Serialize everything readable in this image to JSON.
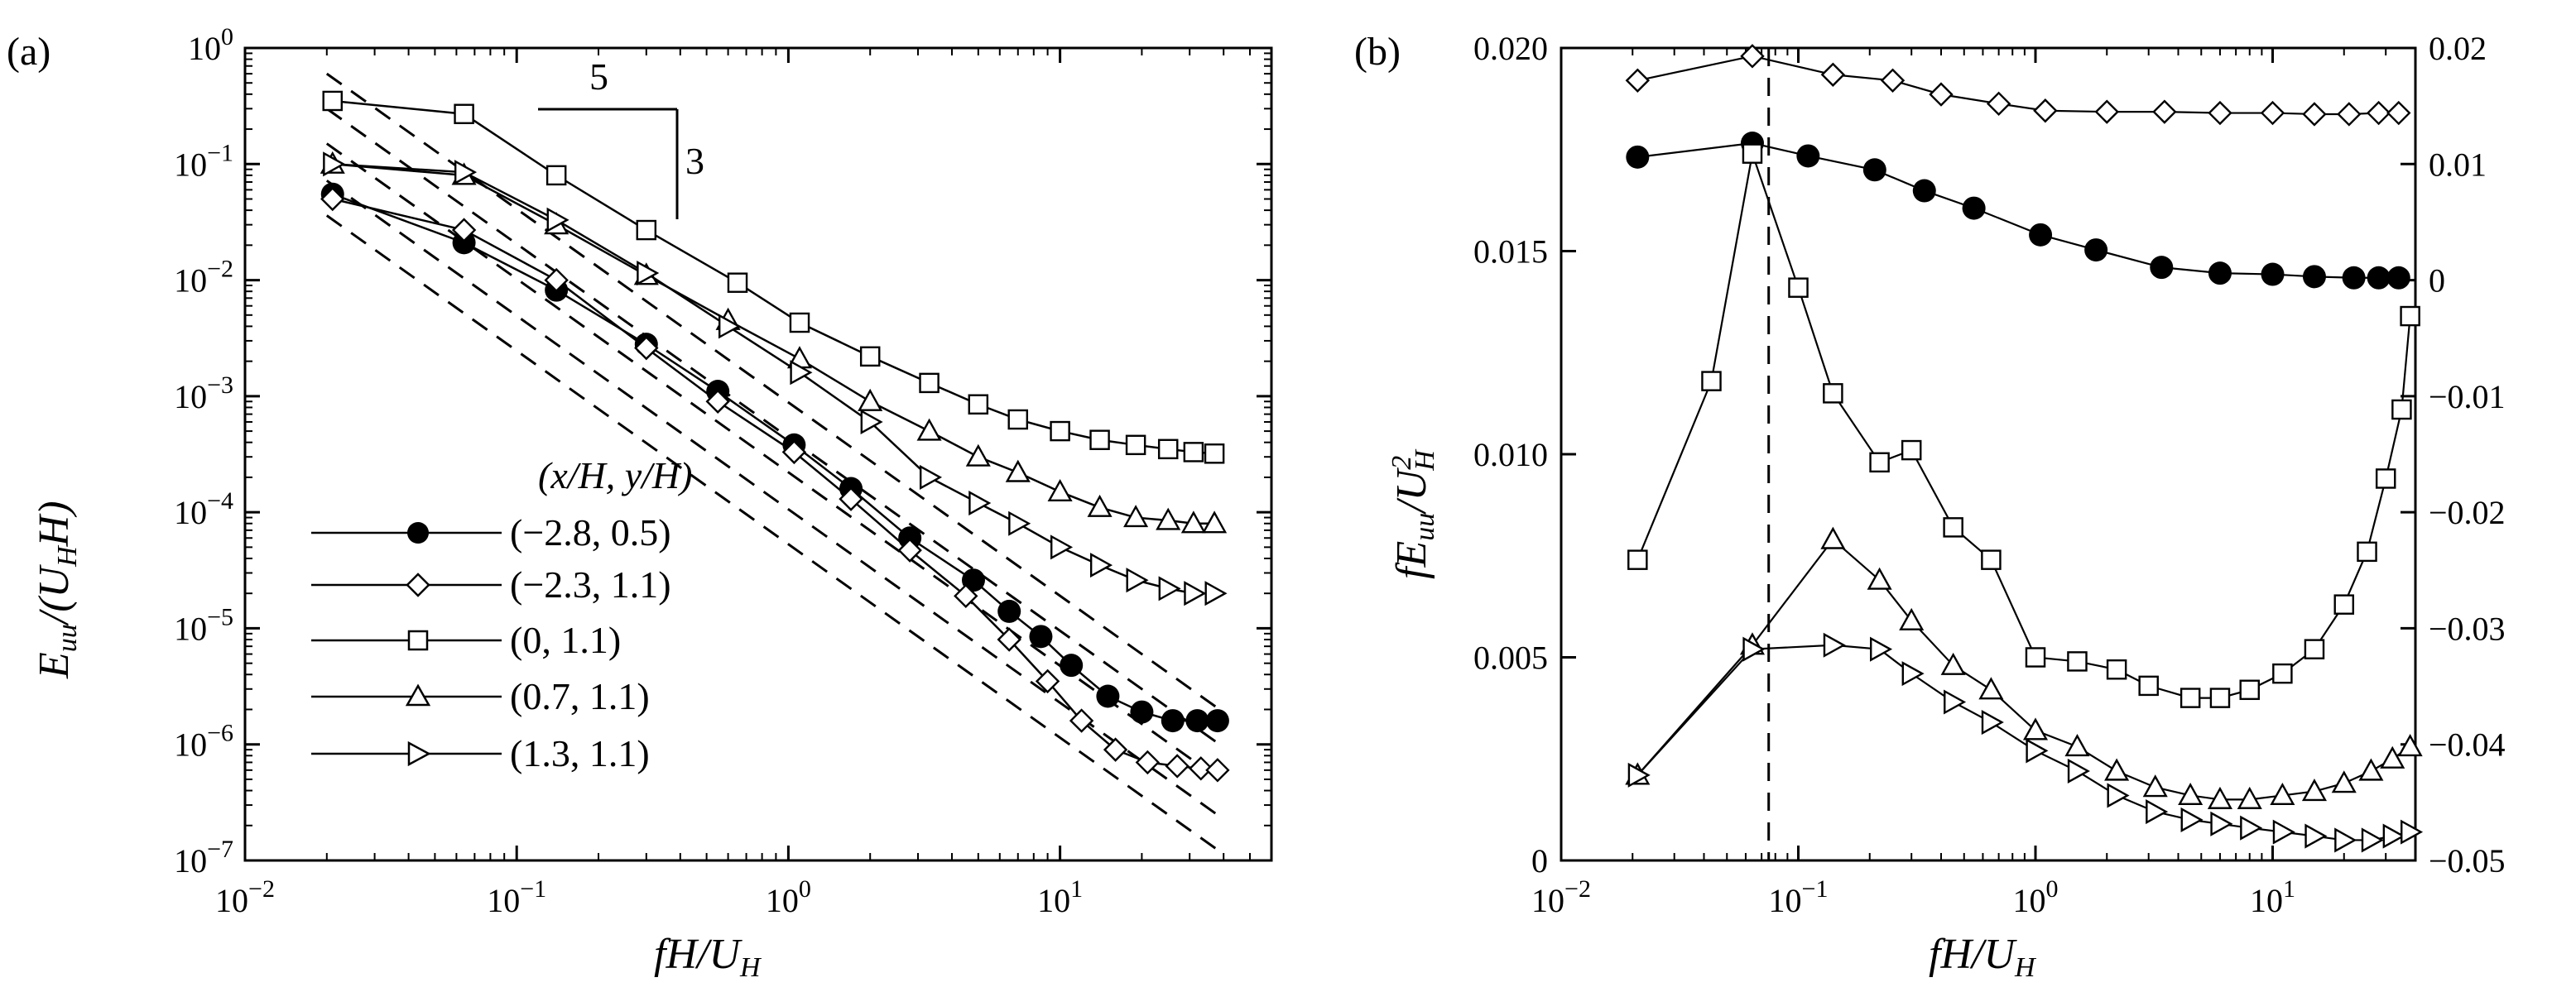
{
  "chart_data": [
    {
      "panel": "(a)",
      "type": "line",
      "xscale": "log",
      "yscale": "log",
      "xlabel": "fH/U_H",
      "ylabel": "E_uu/(U_H H)",
      "xlim": [
        0.01,
        60
      ],
      "ylim": [
        1e-07,
        1
      ],
      "xticks": [
        {
          "v": 0.01,
          "label": "10^-2"
        },
        {
          "v": 0.1,
          "label": "10^-1"
        },
        {
          "v": 1,
          "label": "10^0"
        },
        {
          "v": 10,
          "label": "10^1"
        }
      ],
      "yticks": [
        {
          "v": 1,
          "label": "10^0"
        },
        {
          "v": 0.1,
          "label": "10^-1"
        },
        {
          "v": 0.01,
          "label": "10^-2"
        },
        {
          "v": 0.001,
          "label": "10^-3"
        },
        {
          "v": 0.0001,
          "label": "10^-4"
        },
        {
          "v": 1e-05,
          "label": "10^-5"
        },
        {
          "v": 1e-06,
          "label": "10^-6"
        },
        {
          "v": 1e-07,
          "label": "10^-7"
        }
      ],
      "legend_title": "(x/H, y/H)",
      "legend_position": "lower-left",
      "slope_annotation": {
        "run": "5",
        "rise": "3"
      },
      "series": [
        {
          "name": "(−2.8, 0.5)",
          "marker": "circle-filled",
          "x": [
            0.021,
            0.064,
            0.14,
            0.3,
            0.55,
            1.05,
            1.7,
            2.8,
            4.8,
            6.5,
            8.5,
            11,
            15,
            20,
            26,
            32,
            38
          ],
          "y": [
            0.055,
            0.021,
            0.0082,
            0.0028,
            0.0011,
            0.00038,
            0.00016,
            6e-05,
            2.6e-05,
            1.4e-05,
            8.5e-06,
            4.8e-06,
            2.6e-06,
            1.9e-06,
            1.6e-06,
            1.6e-06,
            1.6e-06
          ]
        },
        {
          "name": "(−2.3, 1.1)",
          "marker": "diamond",
          "x": [
            0.021,
            0.064,
            0.14,
            0.3,
            0.55,
            1.05,
            1.7,
            2.8,
            4.5,
            6.5,
            9,
            12,
            16,
            21,
            27,
            33,
            38
          ],
          "y": [
            0.05,
            0.027,
            0.01,
            0.0026,
            0.0009,
            0.00033,
            0.00013,
            4.7e-05,
            1.9e-05,
            8e-06,
            3.5e-06,
            1.6e-06,
            9e-07,
            7e-07,
            6.5e-07,
            6.2e-07,
            6e-07
          ]
        },
        {
          "name": "(0, 1.1)",
          "marker": "square",
          "x": [
            0.021,
            0.064,
            0.14,
            0.3,
            0.65,
            1.1,
            2,
            3.3,
            5,
            7,
            10,
            14,
            19,
            25,
            31,
            37
          ],
          "y": [
            0.35,
            0.27,
            0.08,
            0.027,
            0.0095,
            0.0043,
            0.0022,
            0.0013,
            0.00085,
            0.00063,
            0.0005,
            0.00042,
            0.00038,
            0.00035,
            0.00033,
            0.00032
          ]
        },
        {
          "name": "(0.7, 1.1)",
          "marker": "triangle-up",
          "x": [
            0.021,
            0.064,
            0.14,
            0.3,
            0.6,
            1.1,
            2,
            3.3,
            5,
            7,
            10,
            14,
            19,
            25,
            31,
            37
          ],
          "y": [
            0.1,
            0.08,
            0.03,
            0.011,
            0.0045,
            0.0021,
            0.0009,
            0.0005,
            0.0003,
            0.00022,
            0.00015,
            0.00011,
            9e-05,
            8.5e-05,
            8e-05,
            8e-05
          ]
        },
        {
          "name": "(1.3, 1.1)",
          "marker": "triangle-right",
          "x": [
            0.021,
            0.064,
            0.14,
            0.3,
            0.6,
            1.1,
            2,
            3.3,
            5,
            7,
            10,
            14,
            19,
            25,
            31,
            37
          ],
          "y": [
            0.1,
            0.085,
            0.033,
            0.0115,
            0.004,
            0.0016,
            0.0006,
            0.0002,
            0.00012,
            8e-05,
            5e-05,
            3.5e-05,
            2.6e-05,
            2.2e-05,
            2e-05,
            2e-05
          ]
        }
      ],
      "reference_lines": [
        {
          "slope": -1.6667,
          "x": [
            0.02,
            38
          ],
          "y0": 0.6
        },
        {
          "slope": -1.6667,
          "x": [
            0.02,
            38
          ],
          "y0": 0.3
        },
        {
          "slope": -1.6667,
          "x": [
            0.02,
            38
          ],
          "y0": 0.15
        },
        {
          "slope": -1.6667,
          "x": [
            0.02,
            38
          ],
          "y0": 0.072
        },
        {
          "slope": -1.6667,
          "x": [
            0.02,
            38
          ],
          "y0": 0.036
        }
      ]
    },
    {
      "panel": "(b)",
      "type": "line",
      "xscale": "log",
      "yscale": "linear",
      "xlabel": "fH/U_H",
      "ylabel": "fE_uu/U_H^2",
      "xlim": [
        0.01,
        40
      ],
      "ylim": [
        0,
        0.02
      ],
      "y2lim": [
        -0.05,
        0.02
      ],
      "xticks": [
        {
          "v": 0.01,
          "label": "10^-2"
        },
        {
          "v": 0.1,
          "label": "10^-1"
        },
        {
          "v": 1,
          "label": "10^0"
        },
        {
          "v": 10,
          "label": "10^1"
        }
      ],
      "yticks": [
        {
          "v": 0,
          "label": "0"
        },
        {
          "v": 0.005,
          "label": "0.005"
        },
        {
          "v": 0.01,
          "label": "0.010"
        },
        {
          "v": 0.015,
          "label": "0.015"
        },
        {
          "v": 0.02,
          "label": "0.020"
        }
      ],
      "y2ticks": [
        {
          "v": 0.02,
          "label": "0.02"
        },
        {
          "v": 0.01,
          "label": "0.01"
        },
        {
          "v": 0,
          "label": "0"
        },
        {
          "v": -0.01,
          "label": "−0.01"
        },
        {
          "v": -0.02,
          "label": "−0.02"
        },
        {
          "v": -0.03,
          "label": "−0.03"
        },
        {
          "v": -0.04,
          "label": "−0.04"
        },
        {
          "v": -0.05,
          "label": "−0.05"
        }
      ],
      "vline_x": 0.075,
      "series": [
        {
          "name": "(−2.8, 0.5)",
          "marker": "circle-filled",
          "axis": "right",
          "x": [
            0.021,
            0.064,
            0.11,
            0.21,
            0.34,
            0.55,
            1.05,
            1.8,
            3.4,
            6,
            10,
            15,
            22,
            28,
            34
          ],
          "y": [
            0.0106,
            0.0118,
            0.0107,
            0.0095,
            0.0077,
            0.0062,
            0.0039,
            0.0026,
            0.0011,
            0.0006,
            0.0005,
            0.0003,
            0.0002,
            0.0002,
            0.0002
          ]
        },
        {
          "name": "(−2.3, 1.1)",
          "marker": "diamond",
          "axis": "right",
          "x": [
            0.021,
            0.064,
            0.14,
            0.25,
            0.4,
            0.7,
            1.1,
            2,
            3.5,
            6,
            10,
            15,
            21,
            28,
            34
          ],
          "y": [
            0.0172,
            0.0193,
            0.0177,
            0.0172,
            0.016,
            0.0152,
            0.0146,
            0.0145,
            0.0145,
            0.0144,
            0.0144,
            0.0143,
            0.0143,
            0.0144,
            0.0144
          ]
        },
        {
          "name": "(0, 1.1)",
          "marker": "square",
          "axis": "left",
          "x": [
            0.021,
            0.043,
            0.064,
            0.1,
            0.14,
            0.22,
            0.3,
            0.45,
            0.65,
            1,
            1.5,
            2.2,
            3,
            4.5,
            6,
            8,
            11,
            15,
            20,
            25,
            30,
            35,
            38
          ],
          "y": [
            0.0074,
            0.0118,
            0.0174,
            0.0141,
            0.0115,
            0.0098,
            0.0101,
            0.0082,
            0.0074,
            0.005,
            0.0049,
            0.0047,
            0.0043,
            0.004,
            0.004,
            0.0042,
            0.0046,
            0.0052,
            0.0063,
            0.0076,
            0.0094,
            0.0111,
            0.0134
          ]
        },
        {
          "name": "(0.7, 1.1)",
          "marker": "triangle-up",
          "axis": "left",
          "x": [
            0.021,
            0.064,
            0.14,
            0.22,
            0.3,
            0.45,
            0.65,
            1,
            1.5,
            2.2,
            3.2,
            4.5,
            6,
            8,
            11,
            15,
            20,
            26,
            32,
            38
          ],
          "y": [
            0.0021,
            0.0053,
            0.0079,
            0.0069,
            0.0059,
            0.0048,
            0.0042,
            0.0032,
            0.0028,
            0.0022,
            0.0018,
            0.0016,
            0.0015,
            0.0015,
            0.0016,
            0.0017,
            0.0019,
            0.0022,
            0.0025,
            0.0028
          ]
        },
        {
          "name": "(1.3, 1.1)",
          "marker": "triangle-right",
          "axis": "left",
          "x": [
            0.021,
            0.064,
            0.14,
            0.22,
            0.3,
            0.45,
            0.65,
            1,
            1.5,
            2.2,
            3.2,
            4.5,
            6,
            8,
            11,
            15,
            20,
            26,
            32,
            38
          ],
          "y": [
            0.0021,
            0.0052,
            0.0053,
            0.0052,
            0.0046,
            0.0039,
            0.0034,
            0.0027,
            0.0022,
            0.0016,
            0.0012,
            0.001,
            0.0009,
            0.0008,
            0.0007,
            0.0006,
            0.0005,
            0.0005,
            0.0006,
            0.0007
          ]
        }
      ]
    }
  ],
  "figure": {
    "panel_a_label": "(a)",
    "panel_b_label": "(b)",
    "legend_title": "(x/H, y/H)",
    "legend_items": [
      "(−2.8, 0.5)",
      "(−2.3, 1.1)",
      "(0, 1.1)",
      "(0.7, 1.1)",
      "(1.3, 1.1)"
    ],
    "slope_run": "5",
    "slope_rise": "3"
  }
}
